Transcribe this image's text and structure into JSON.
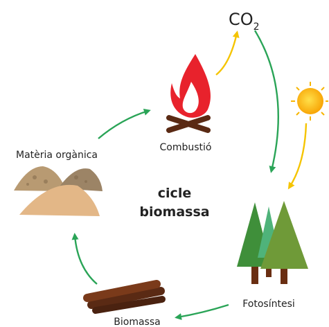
{
  "center_label": [
    "cicle",
    "biomassa"
  ],
  "nodes": {
    "co2": {
      "label": "CO",
      "subscript": "2"
    },
    "combustion": {
      "label": "Combustió"
    },
    "organic_matter": {
      "label": "Matèria orgànica"
    },
    "photosynthesis": {
      "label": "Fotosíntesi"
    },
    "biomass": {
      "label": "Biomassa"
    }
  }
}
